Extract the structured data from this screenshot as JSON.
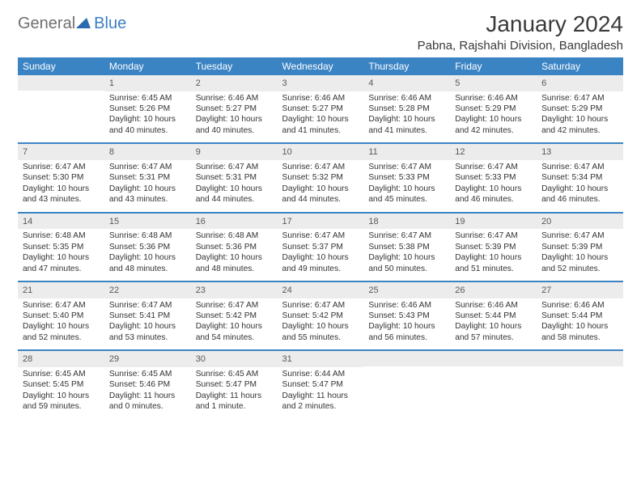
{
  "logo": {
    "part1": "General",
    "part2": "Blue"
  },
  "title": "January 2024",
  "location": "Pabna, Rajshahi Division, Bangladesh",
  "colors": {
    "header_bg": "#3b84c4",
    "header_text": "#ffffff",
    "daynum_bg": "#ececec",
    "daynum_text": "#585858",
    "body_text": "#333333",
    "logo_gray": "#6f6f6f",
    "logo_blue": "#3b7fc4"
  },
  "weekdays": [
    "Sunday",
    "Monday",
    "Tuesday",
    "Wednesday",
    "Thursday",
    "Friday",
    "Saturday"
  ],
  "weeks": [
    [
      {
        "empty": true
      },
      {
        "n": "1",
        "sr": "6:45 AM",
        "ss": "5:26 PM",
        "dl": "10 hours and 40 minutes."
      },
      {
        "n": "2",
        "sr": "6:46 AM",
        "ss": "5:27 PM",
        "dl": "10 hours and 40 minutes."
      },
      {
        "n": "3",
        "sr": "6:46 AM",
        "ss": "5:27 PM",
        "dl": "10 hours and 41 minutes."
      },
      {
        "n": "4",
        "sr": "6:46 AM",
        "ss": "5:28 PM",
        "dl": "10 hours and 41 minutes."
      },
      {
        "n": "5",
        "sr": "6:46 AM",
        "ss": "5:29 PM",
        "dl": "10 hours and 42 minutes."
      },
      {
        "n": "6",
        "sr": "6:47 AM",
        "ss": "5:29 PM",
        "dl": "10 hours and 42 minutes."
      }
    ],
    [
      {
        "n": "7",
        "sr": "6:47 AM",
        "ss": "5:30 PM",
        "dl": "10 hours and 43 minutes."
      },
      {
        "n": "8",
        "sr": "6:47 AM",
        "ss": "5:31 PM",
        "dl": "10 hours and 43 minutes."
      },
      {
        "n": "9",
        "sr": "6:47 AM",
        "ss": "5:31 PM",
        "dl": "10 hours and 44 minutes."
      },
      {
        "n": "10",
        "sr": "6:47 AM",
        "ss": "5:32 PM",
        "dl": "10 hours and 44 minutes."
      },
      {
        "n": "11",
        "sr": "6:47 AM",
        "ss": "5:33 PM",
        "dl": "10 hours and 45 minutes."
      },
      {
        "n": "12",
        "sr": "6:47 AM",
        "ss": "5:33 PM",
        "dl": "10 hours and 46 minutes."
      },
      {
        "n": "13",
        "sr": "6:47 AM",
        "ss": "5:34 PM",
        "dl": "10 hours and 46 minutes."
      }
    ],
    [
      {
        "n": "14",
        "sr": "6:48 AM",
        "ss": "5:35 PM",
        "dl": "10 hours and 47 minutes."
      },
      {
        "n": "15",
        "sr": "6:48 AM",
        "ss": "5:36 PM",
        "dl": "10 hours and 48 minutes."
      },
      {
        "n": "16",
        "sr": "6:48 AM",
        "ss": "5:36 PM",
        "dl": "10 hours and 48 minutes."
      },
      {
        "n": "17",
        "sr": "6:47 AM",
        "ss": "5:37 PM",
        "dl": "10 hours and 49 minutes."
      },
      {
        "n": "18",
        "sr": "6:47 AM",
        "ss": "5:38 PM",
        "dl": "10 hours and 50 minutes."
      },
      {
        "n": "19",
        "sr": "6:47 AM",
        "ss": "5:39 PM",
        "dl": "10 hours and 51 minutes."
      },
      {
        "n": "20",
        "sr": "6:47 AM",
        "ss": "5:39 PM",
        "dl": "10 hours and 52 minutes."
      }
    ],
    [
      {
        "n": "21",
        "sr": "6:47 AM",
        "ss": "5:40 PM",
        "dl": "10 hours and 52 minutes."
      },
      {
        "n": "22",
        "sr": "6:47 AM",
        "ss": "5:41 PM",
        "dl": "10 hours and 53 minutes."
      },
      {
        "n": "23",
        "sr": "6:47 AM",
        "ss": "5:42 PM",
        "dl": "10 hours and 54 minutes."
      },
      {
        "n": "24",
        "sr": "6:47 AM",
        "ss": "5:42 PM",
        "dl": "10 hours and 55 minutes."
      },
      {
        "n": "25",
        "sr": "6:46 AM",
        "ss": "5:43 PM",
        "dl": "10 hours and 56 minutes."
      },
      {
        "n": "26",
        "sr": "6:46 AM",
        "ss": "5:44 PM",
        "dl": "10 hours and 57 minutes."
      },
      {
        "n": "27",
        "sr": "6:46 AM",
        "ss": "5:44 PM",
        "dl": "10 hours and 58 minutes."
      }
    ],
    [
      {
        "n": "28",
        "sr": "6:45 AM",
        "ss": "5:45 PM",
        "dl": "10 hours and 59 minutes."
      },
      {
        "n": "29",
        "sr": "6:45 AM",
        "ss": "5:46 PM",
        "dl": "11 hours and 0 minutes."
      },
      {
        "n": "30",
        "sr": "6:45 AM",
        "ss": "5:47 PM",
        "dl": "11 hours and 1 minute."
      },
      {
        "n": "31",
        "sr": "6:44 AM",
        "ss": "5:47 PM",
        "dl": "11 hours and 2 minutes."
      },
      {
        "empty": true
      },
      {
        "empty": true
      },
      {
        "empty": true
      }
    ]
  ],
  "labels": {
    "sunrise": "Sunrise:",
    "sunset": "Sunset:",
    "daylight": "Daylight:"
  }
}
